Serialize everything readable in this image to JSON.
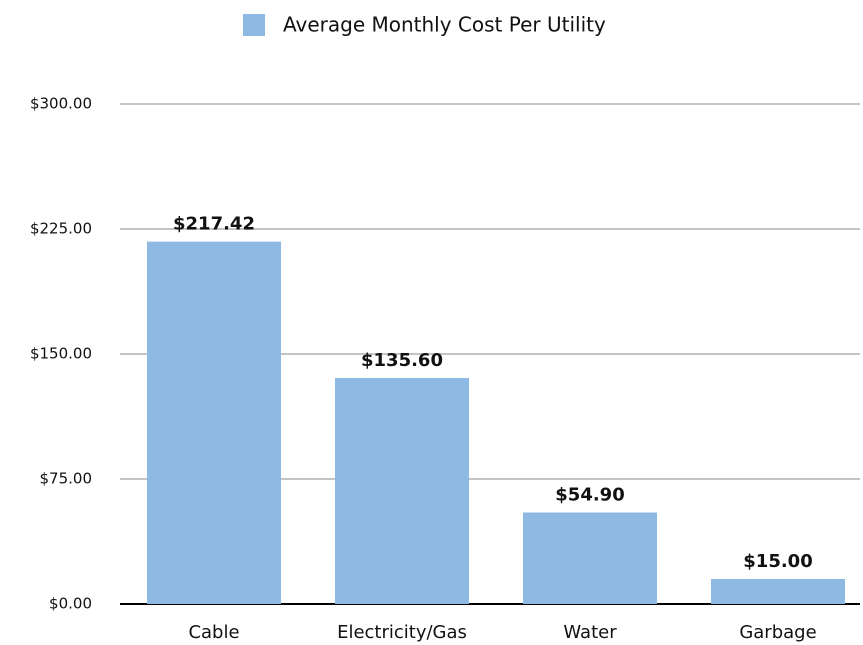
{
  "chart_data": {
    "type": "bar",
    "categories": [
      "Cable",
      "Electricity/Gas",
      "Water",
      "Garbage"
    ],
    "series": [
      {
        "name": "Average Monthly Cost Per Utility",
        "color": "#8db9e2",
        "values": [
          217.42,
          135.6,
          54.9,
          15
        ],
        "value_labels": [
          "$217.42",
          "$135.60",
          "$54.90",
          "$15.00"
        ]
      }
    ],
    "ylim": [
      0,
      300
    ],
    "yticks": [
      {
        "value": 0,
        "label": "$0.00"
      },
      {
        "value": 75,
        "label": "$75.00"
      },
      {
        "value": 150,
        "label": "$150.00"
      },
      {
        "value": 225,
        "label": "$225.00"
      },
      {
        "value": 300,
        "label": "$300.00"
      }
    ],
    "grid": true,
    "legend": "top"
  }
}
